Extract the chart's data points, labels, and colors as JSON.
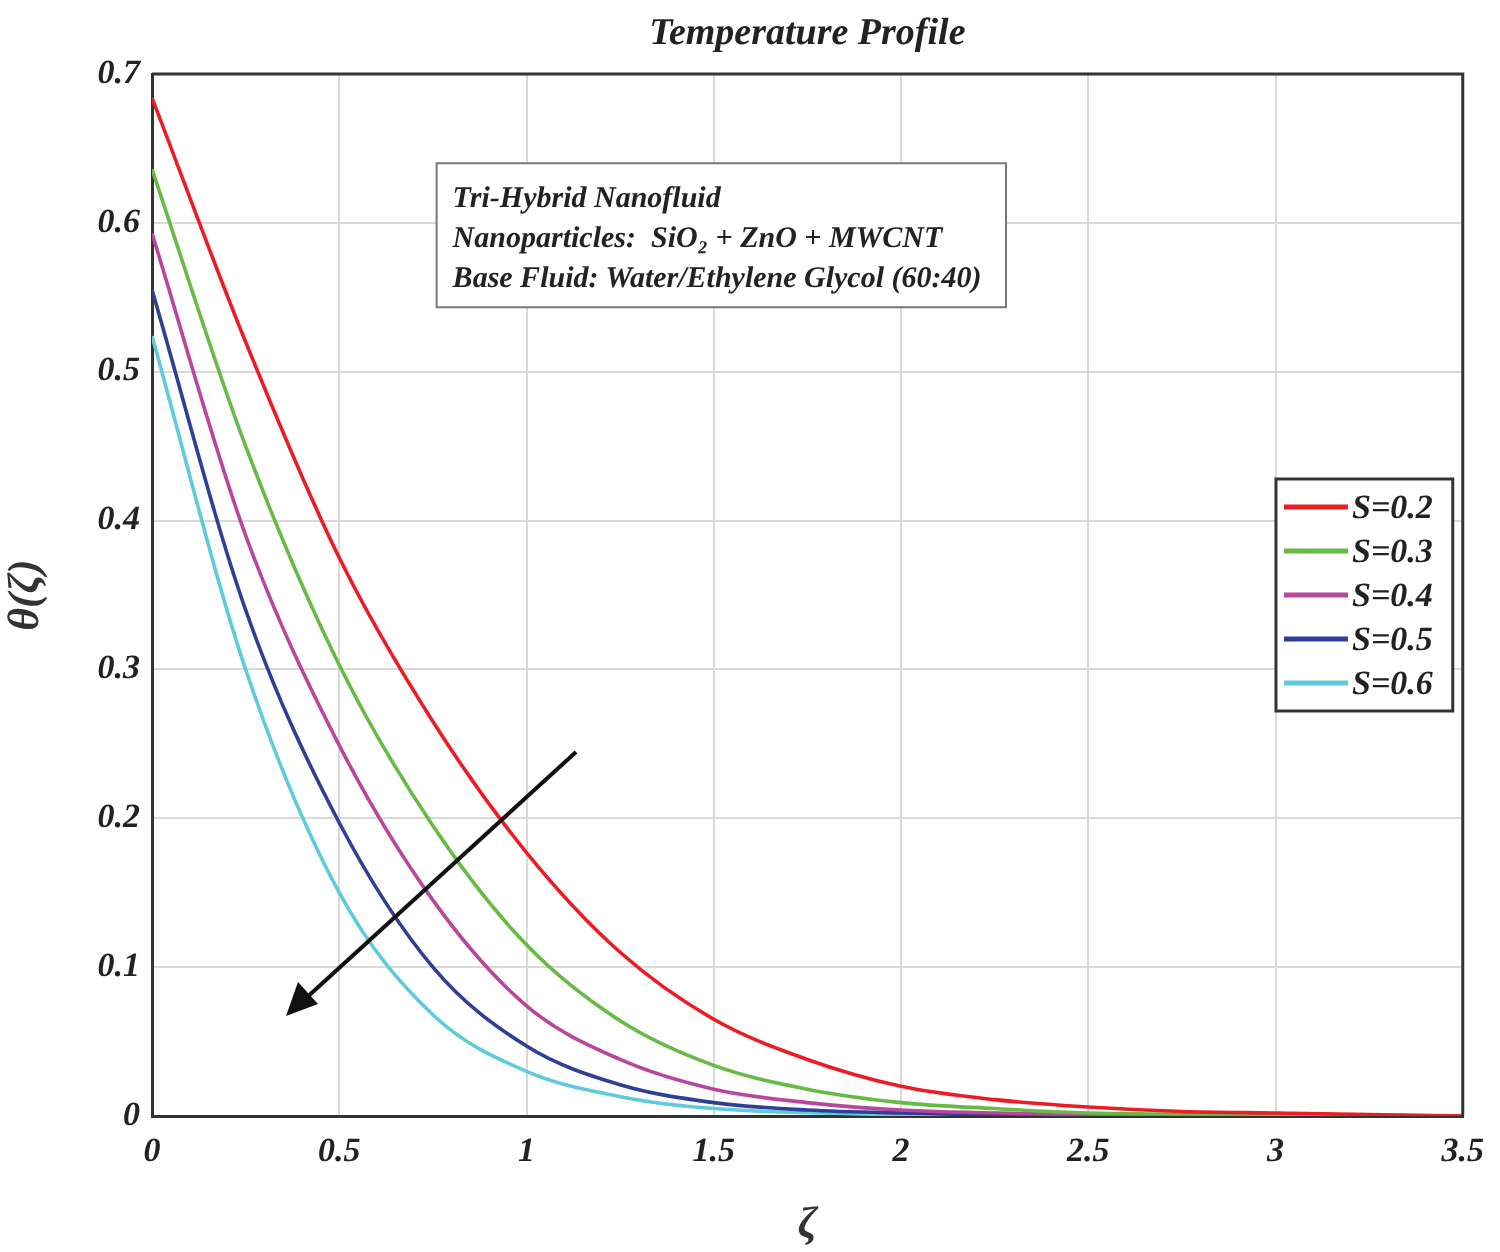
{
  "chart_data": {
    "type": "line",
    "title": "Temperature Profile",
    "xlabel": "ζ",
    "ylabel": "θ(ζ)",
    "annotations": [
      "Tri-Hybrid Nanofluid",
      "Nanoparticles:  SiO₂ + ZnO + MWCNT",
      "Base Fluid: Water/Ethylene Glycol (60:40)"
    ],
    "series": [
      {
        "name": "S=0.2",
        "color": "#ec1c24",
        "x": [
          0,
          0.25,
          0.5,
          0.75,
          1,
          1.25,
          1.5,
          1.75,
          2,
          2.25,
          2.5,
          2.75,
          3,
          3.25,
          3.5
        ],
        "values": [
          0.684,
          0.52,
          0.375,
          0.265,
          0.177,
          0.11,
          0.065,
          0.038,
          0.02,
          0.011,
          0.006,
          0.003,
          0.002,
          0.001,
          0
        ]
      },
      {
        "name": "S=0.3",
        "color": "#66bb44",
        "x": [
          0,
          0.25,
          0.5,
          0.75,
          1,
          1.25,
          1.5,
          1.75,
          2,
          2.25,
          2.5,
          3,
          3.5
        ],
        "values": [
          0.636,
          0.45,
          0.303,
          0.195,
          0.115,
          0.064,
          0.034,
          0.018,
          0.009,
          0.005,
          0.002,
          0.001,
          0
        ]
      },
      {
        "name": "S=0.4",
        "color": "#b8459e",
        "x": [
          0,
          0.25,
          0.5,
          0.75,
          1,
          1.25,
          1.5,
          1.75,
          2,
          2.5,
          3,
          3.5
        ],
        "values": [
          0.593,
          0.39,
          0.249,
          0.145,
          0.074,
          0.038,
          0.018,
          0.009,
          0.004,
          0.001,
          0,
          0
        ]
      },
      {
        "name": "S=0.5",
        "color": "#2e3f97",
        "x": [
          0,
          0.25,
          0.5,
          0.75,
          1,
          1.25,
          1.5,
          1.75,
          2,
          2.5,
          3.5
        ],
        "values": [
          0.555,
          0.34,
          0.197,
          0.1,
          0.047,
          0.021,
          0.009,
          0.004,
          0.002,
          0,
          0
        ]
      },
      {
        "name": "S=0.6",
        "color": "#5ecbdc",
        "x": [
          0,
          0.25,
          0.5,
          0.75,
          1,
          1.25,
          1.5,
          2,
          2.5,
          3.5
        ],
        "values": [
          0.524,
          0.3,
          0.15,
          0.068,
          0.03,
          0.013,
          0.005,
          0.001,
          0,
          0
        ]
      }
    ],
    "xlim": [
      0,
      3.5
    ],
    "xticks": [
      0,
      0.5,
      1,
      1.5,
      2,
      2.5,
      3,
      3.5
    ],
    "ylim": [
      0,
      0.7
    ],
    "yticks": [
      0,
      0.1,
      0.2,
      0.3,
      0.4,
      0.5,
      0.6,
      0.7
    ],
    "grid": true,
    "legend": "right",
    "marker": "none",
    "line_style": "solid"
  }
}
